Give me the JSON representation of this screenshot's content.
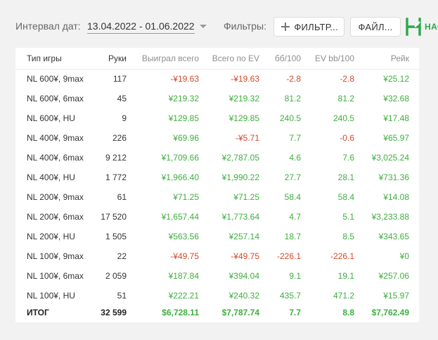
{
  "header": {
    "interval_label": "Интервал дат:",
    "interval_value": "13.04.2022 - 01.06.2022",
    "filters_label": "Фильтры:",
    "filters_button": "ФИЛЬТР...",
    "files_button": "ФАЙЛ...",
    "logo_text": "НАСТ"
  },
  "table": {
    "columns": [
      "Тип игры",
      "Руки",
      "Выиграл всего",
      "Всего по EV",
      "бб/100",
      "EV bb/100",
      "Рейк"
    ],
    "rows": [
      {
        "type": "NL 600¥, 9max",
        "hands": "117",
        "won": "-¥19.63",
        "won_color": "neg",
        "ev": "-¥19.63",
        "ev_color": "neg",
        "bb": "-2.8",
        "bb_color": "neg",
        "evbb": "-2.8",
        "evbb_color": "neg",
        "rake": "¥25.12"
      },
      {
        "type": "NL 600¥, 6max",
        "hands": "45",
        "won": "¥219.32",
        "won_color": "pos",
        "ev": "¥219.32",
        "ev_color": "pos",
        "bb": "81.2",
        "bb_color": "pos",
        "evbb": "81.2",
        "evbb_color": "pos",
        "rake": "¥32.68"
      },
      {
        "type": "NL 600¥, HU",
        "hands": "9",
        "won": "¥129.85",
        "won_color": "pos",
        "ev": "¥129.85",
        "ev_color": "pos",
        "bb": "240.5",
        "bb_color": "pos",
        "evbb": "240.5",
        "evbb_color": "pos",
        "rake": "¥17.48"
      },
      {
        "type": "NL 400¥, 9max",
        "hands": "226",
        "won": "¥69.96",
        "won_color": "pos",
        "ev": "-¥5.71",
        "ev_color": "neg",
        "bb": "7.7",
        "bb_color": "pos",
        "evbb": "-0.6",
        "evbb_color": "neg",
        "rake": "¥65.97"
      },
      {
        "type": "NL 400¥, 6max",
        "hands": "9 212",
        "won": "¥1,709.66",
        "won_color": "pos",
        "ev": "¥2,787.05",
        "ev_color": "pos",
        "bb": "4.6",
        "bb_color": "pos",
        "evbb": "7.6",
        "evbb_color": "pos",
        "rake": "¥3,025.24"
      },
      {
        "type": "NL 400¥, HU",
        "hands": "1 772",
        "won": "¥1,966.40",
        "won_color": "pos",
        "ev": "¥1,990.22",
        "ev_color": "pos",
        "bb": "27.7",
        "bb_color": "pos",
        "evbb": "28.1",
        "evbb_color": "pos",
        "rake": "¥731.36"
      },
      {
        "type": "NL 200¥, 9max",
        "hands": "61",
        "won": "¥71.25",
        "won_color": "pos",
        "ev": "¥71.25",
        "ev_color": "pos",
        "bb": "58.4",
        "bb_color": "pos",
        "evbb": "58.4",
        "evbb_color": "pos",
        "rake": "¥14.08"
      },
      {
        "type": "NL 200¥, 6max",
        "hands": "17 520",
        "won": "¥1,657.44",
        "won_color": "pos",
        "ev": "¥1,773.64",
        "ev_color": "pos",
        "bb": "4.7",
        "bb_color": "pos",
        "evbb": "5.1",
        "evbb_color": "pos",
        "rake": "¥3,233.88"
      },
      {
        "type": "NL 200¥, HU",
        "hands": "1 505",
        "won": "¥563.56",
        "won_color": "pos",
        "ev": "¥257.14",
        "ev_color": "pos",
        "bb": "18.7",
        "bb_color": "pos",
        "evbb": "8.5",
        "evbb_color": "pos",
        "rake": "¥343.65"
      },
      {
        "type": "NL 100¥, 9max",
        "hands": "22",
        "won": "-¥49.75",
        "won_color": "neg",
        "ev": "-¥49.75",
        "ev_color": "neg",
        "bb": "-226.1",
        "bb_color": "neg",
        "evbb": "-226.1",
        "evbb_color": "neg",
        "rake": "¥0"
      },
      {
        "type": "NL 100¥, 6max",
        "hands": "2 059",
        "won": "¥187.84",
        "won_color": "pos",
        "ev": "¥394.04",
        "ev_color": "pos",
        "bb": "9.1",
        "bb_color": "pos",
        "evbb": "19.1",
        "evbb_color": "pos",
        "rake": "¥257.06"
      },
      {
        "type": "NL 100¥, HU",
        "hands": "51",
        "won": "¥222.21",
        "won_color": "pos",
        "ev": "¥240.32",
        "ev_color": "pos",
        "bb": "435.7",
        "bb_color": "pos",
        "evbb": "471.2",
        "evbb_color": "pos",
        "rake": "¥15.97"
      }
    ],
    "total": {
      "type": "ИТОГ",
      "hands": "32 599",
      "won": "$6,728.11",
      "ev": "$7,787.74",
      "bb": "7.7",
      "evbb": "8.8",
      "rake": "$7,762.49"
    }
  },
  "colors": {
    "positive": "#3fae3f",
    "negative": "#d4482a",
    "brand": "#2aa847"
  },
  "icons": {
    "add": "plus-icon",
    "logo": "h-logo-icon",
    "dropdown": "chevron-down-icon"
  }
}
